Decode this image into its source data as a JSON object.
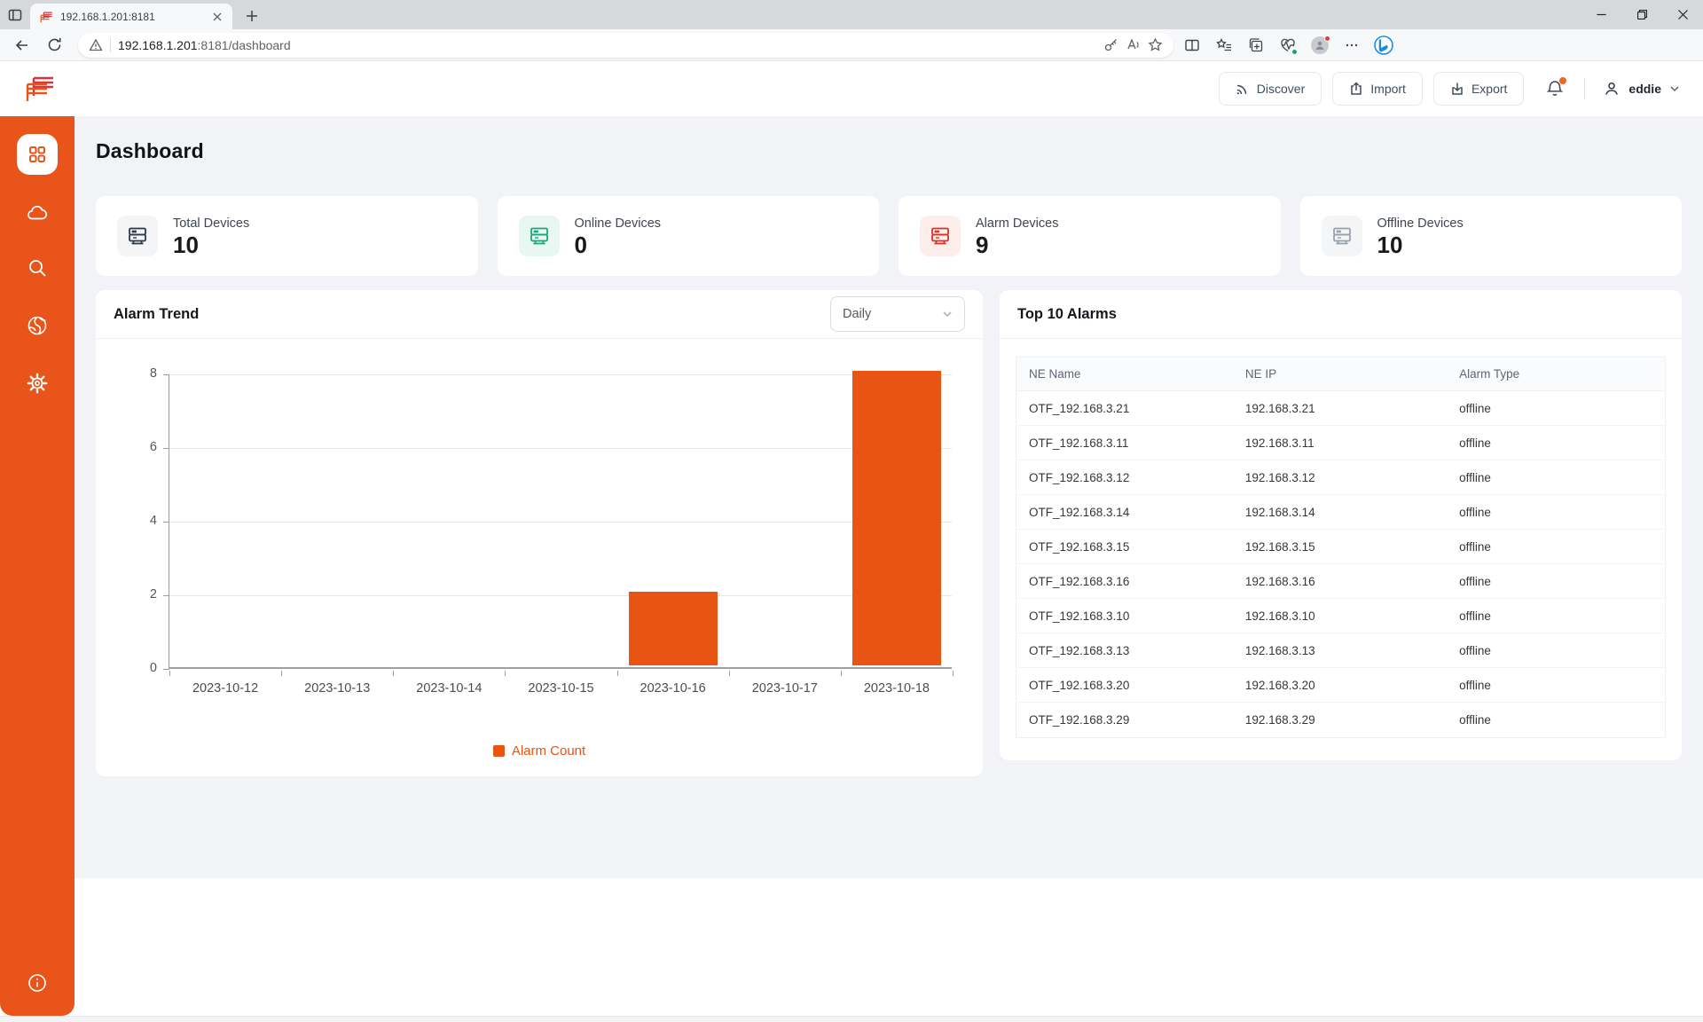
{
  "browser": {
    "tab_title": "192.168.1.201:8181",
    "url_domain": "192.168.1.201",
    "url_suffix": ":8181/dashboard"
  },
  "header": {
    "discover_label": "Discover",
    "import_label": "Import",
    "export_label": "Export",
    "username": "eddie"
  },
  "page": {
    "title": "Dashboard"
  },
  "stats": [
    {
      "label": "Total Devices",
      "value": "10",
      "icon": "server-icon",
      "accent": "#2c3a4a",
      "bg": "#f3f5f7"
    },
    {
      "label": "Online Devices",
      "value": "0",
      "icon": "server-icon",
      "accent": "#16a87e",
      "bg": "#e9f7f1"
    },
    {
      "label": "Alarm Devices",
      "value": "9",
      "icon": "server-icon",
      "accent": "#d6332a",
      "bg": "#fdeeec"
    },
    {
      "label": "Offline Devices",
      "value": "10",
      "icon": "server-icon",
      "accent": "#98a1ab",
      "bg": "#f3f5f7"
    }
  ],
  "alarm_trend": {
    "title": "Alarm Trend",
    "range_value": "Daily",
    "legend_label": "Alarm Count"
  },
  "chart_data": {
    "type": "bar",
    "title": "Alarm Trend",
    "categories": [
      "2023-10-12",
      "2023-10-13",
      "2023-10-14",
      "2023-10-15",
      "2023-10-16",
      "2023-10-17",
      "2023-10-18"
    ],
    "series": [
      {
        "name": "Alarm Count",
        "values": [
          0,
          0,
          0,
          0,
          2,
          0,
          8
        ]
      }
    ],
    "xlabel": "",
    "ylabel": "",
    "ylim": [
      0,
      8
    ],
    "yticks": [
      0,
      2,
      4,
      6,
      8
    ],
    "grid": true,
    "legend_position": "bottom",
    "bar_color": "#e85513"
  },
  "top_alarms": {
    "title": "Top 10 Alarms",
    "columns": [
      "NE Name",
      "NE IP",
      "Alarm Type"
    ],
    "rows": [
      {
        "ne_name": "OTF_192.168.3.21",
        "ne_ip": "192.168.3.21",
        "alarm_type": "offline"
      },
      {
        "ne_name": "OTF_192.168.3.11",
        "ne_ip": "192.168.3.11",
        "alarm_type": "offline"
      },
      {
        "ne_name": "OTF_192.168.3.12",
        "ne_ip": "192.168.3.12",
        "alarm_type": "offline"
      },
      {
        "ne_name": "OTF_192.168.3.14",
        "ne_ip": "192.168.3.14",
        "alarm_type": "offline"
      },
      {
        "ne_name": "OTF_192.168.3.15",
        "ne_ip": "192.168.3.15",
        "alarm_type": "offline"
      },
      {
        "ne_name": "OTF_192.168.3.16",
        "ne_ip": "192.168.3.16",
        "alarm_type": "offline"
      },
      {
        "ne_name": "OTF_192.168.3.10",
        "ne_ip": "192.168.3.10",
        "alarm_type": "offline"
      },
      {
        "ne_name": "OTF_192.168.3.13",
        "ne_ip": "192.168.3.13",
        "alarm_type": "offline"
      },
      {
        "ne_name": "OTF_192.168.3.20",
        "ne_ip": "192.168.3.20",
        "alarm_type": "offline"
      },
      {
        "ne_name": "OTF_192.168.3.29",
        "ne_ip": "192.168.3.29",
        "alarm_type": "offline"
      }
    ]
  },
  "colors": {
    "brand_orange": "#e8541a",
    "bar_orange": "#e85513",
    "notification_dot": "#f5641e"
  }
}
